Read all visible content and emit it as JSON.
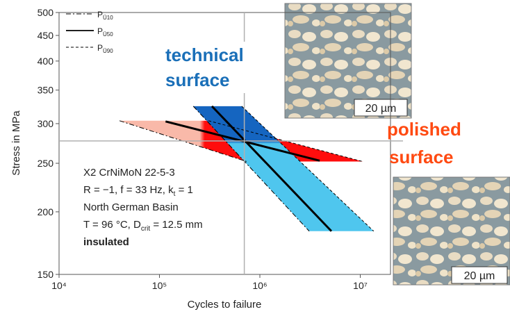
{
  "chart_data": {
    "type": "sn-bands",
    "x_label": "Cycles to failure",
    "y_label": "Stress in MPa",
    "log_x": true,
    "log_y": true,
    "xlim": [
      10000,
      20000000
    ],
    "ylim": [
      150,
      500
    ],
    "xticks": [
      {
        "value": 10000,
        "label": "10⁴"
      },
      {
        "value": 100000,
        "label": "10⁵"
      },
      {
        "value": 1000000,
        "label": "10⁶"
      },
      {
        "value": 10000000,
        "label": "10⁷"
      }
    ],
    "yticks": [
      150,
      200,
      250,
      300,
      350,
      400,
      450,
      500
    ],
    "reference_lines": {
      "x": 700000,
      "y": 277,
      "color": "#b0b0b0"
    },
    "legend": [
      {
        "symbol": "P",
        "subscript": "Ü10",
        "dash": "dash-dot"
      },
      {
        "symbol": "P",
        "subscript": "Ü50",
        "dash": "solid"
      },
      {
        "symbol": "P",
        "subscript": "Ü90",
        "dash": "dashed"
      }
    ],
    "bands": [
      {
        "label": [
          "polished",
          "surface"
        ],
        "label_color": "#ff4a12",
        "colors": [
          "#f9b9a9",
          "#ff0d0d"
        ],
        "gradient": "horizontal",
        "p10": {
          "x": [
            40000,
            740000
          ],
          "y": [
            304,
            252
          ]
        },
        "p50": {
          "x": [
            115000,
            3940000
          ],
          "y": [
            303,
            253
          ]
        },
        "p90": {
          "x": [
            308000,
            10600000
          ],
          "y": [
            304,
            252
          ]
        }
      },
      {
        "label": [
          "technical",
          "surface"
        ],
        "label_color": "#1a6fb8",
        "colors": [
          "#1565c0",
          "#4fc6ee"
        ],
        "gradient": "vertical",
        "p10": {
          "x": [
            217000,
            3100000
          ],
          "y": [
            325,
            183
          ]
        },
        "p50": {
          "x": [
            333000,
            5160000
          ],
          "y": [
            325,
            183
          ]
        },
        "p90": {
          "x": [
            660000,
            13600000
          ],
          "y": [
            325,
            183
          ]
        }
      }
    ],
    "conditions": [
      [
        {
          "text": "X2 CrNiMoN 22-5-3"
        }
      ],
      [
        {
          "text": "R = −1, f = 33 Hz, k"
        },
        {
          "text": "t",
          "sub": true
        },
        {
          "text": " = 1"
        }
      ],
      [
        {
          "text": "North German Basin"
        }
      ],
      [
        {
          "text": "T = 96 °C, D"
        },
        {
          "text": "crit",
          "sub": true
        },
        {
          "text": " = 12.5 mm"
        }
      ],
      [
        {
          "text": "insulated",
          "bold": true
        }
      ]
    ],
    "micrograph_scale": [
      "20 µm",
      "20 µm"
    ]
  }
}
